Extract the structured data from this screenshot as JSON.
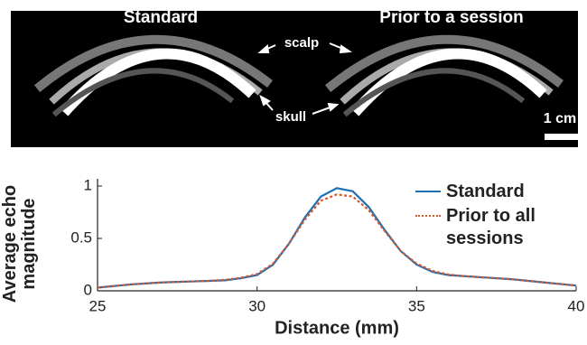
{
  "image_panel": {
    "left_title": "Standard",
    "right_title": "Prior to a session",
    "scalp": "scalp",
    "skull": "skull",
    "scale_bar": "1 cm"
  },
  "chart_data": {
    "type": "line",
    "xlabel": "Distance (mm)",
    "ylabel": "Average echo magnitude",
    "x": [
      25,
      25.5,
      26,
      26.5,
      27,
      27.5,
      28,
      28.5,
      29,
      29.5,
      30,
      30.5,
      31,
      31.5,
      32,
      32.5,
      33,
      33.5,
      34,
      34.5,
      35,
      35.5,
      36,
      36.5,
      37,
      37.5,
      38,
      38.5,
      39,
      39.5,
      40
    ],
    "series": [
      {
        "name": "Standard",
        "color": "#1f6fb4",
        "dash": false,
        "values": [
          0.03,
          0.045,
          0.06,
          0.07,
          0.08,
          0.085,
          0.09,
          0.095,
          0.1,
          0.12,
          0.15,
          0.25,
          0.45,
          0.7,
          0.9,
          0.98,
          0.95,
          0.8,
          0.58,
          0.38,
          0.25,
          0.18,
          0.15,
          0.14,
          0.13,
          0.12,
          0.11,
          0.095,
          0.08,
          0.065,
          0.05
        ]
      },
      {
        "name": "Prior to all sessions",
        "color": "#d9582b",
        "dash": true,
        "values": [
          0.03,
          0.045,
          0.06,
          0.07,
          0.08,
          0.085,
          0.09,
          0.095,
          0.105,
          0.125,
          0.16,
          0.26,
          0.45,
          0.68,
          0.86,
          0.92,
          0.9,
          0.77,
          0.57,
          0.38,
          0.26,
          0.19,
          0.155,
          0.14,
          0.13,
          0.12,
          0.11,
          0.095,
          0.08,
          0.065,
          0.05
        ]
      }
    ],
    "xlim": [
      25,
      40
    ],
    "xticks": [
      25,
      30,
      35,
      40
    ],
    "ylim": [
      0,
      1
    ],
    "yticks": [
      0,
      0.5,
      1
    ],
    "grid": false
  }
}
